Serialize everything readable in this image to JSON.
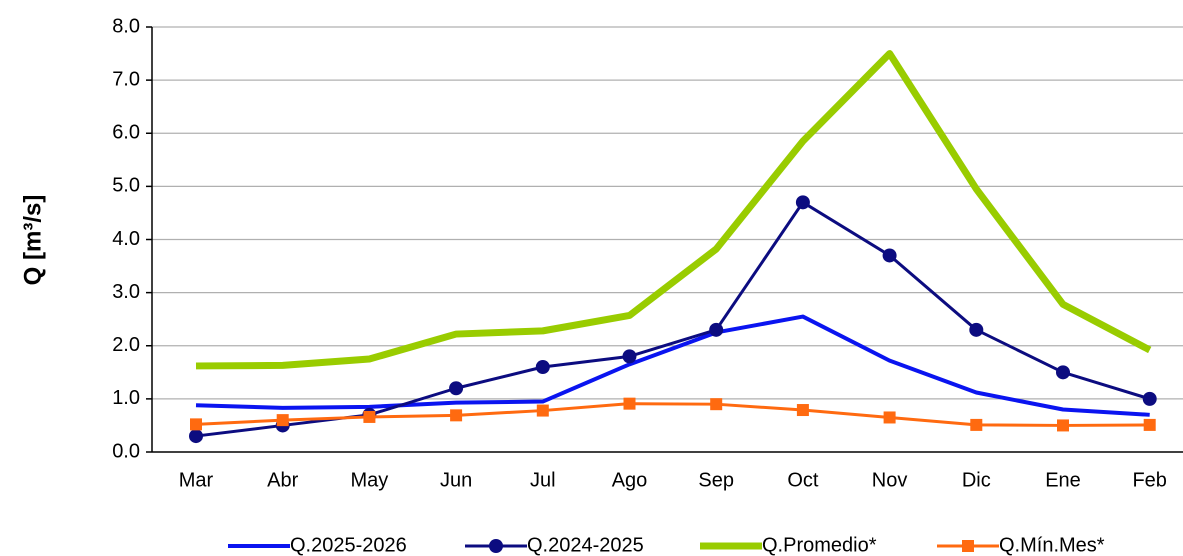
{
  "chart_data": {
    "type": "line",
    "y_label": "Q [m³/s]",
    "categories": [
      "Mar",
      "Abr",
      "May",
      "Jun",
      "Jul",
      "Ago",
      "Sep",
      "Oct",
      "Nov",
      "Dic",
      "Ene",
      "Feb"
    ],
    "ylim": [
      0,
      8
    ],
    "yticks": [
      {
        "value": 0,
        "label": "0.0"
      },
      {
        "value": 1,
        "label": "1.0"
      },
      {
        "value": 2,
        "label": "2.0"
      },
      {
        "value": 3,
        "label": "3.0"
      },
      {
        "value": 4,
        "label": "4.0"
      },
      {
        "value": 5,
        "label": "5.0"
      },
      {
        "value": 6,
        "label": "6.0"
      },
      {
        "value": 7,
        "label": "7.0"
      },
      {
        "value": 8,
        "label": "8.0"
      }
    ],
    "grid": true,
    "legend": "bottom",
    "series": [
      {
        "name": "Q.2025-2026",
        "color": "#0a14f0",
        "marker": "none",
        "values": [
          0.88,
          0.83,
          0.85,
          0.93,
          0.95,
          1.65,
          2.25,
          2.55,
          1.72,
          1.12,
          0.8,
          0.7
        ]
      },
      {
        "name": "Q.2024-2025",
        "color": "#0c0c80",
        "marker": "circle",
        "values": [
          0.3,
          0.5,
          0.7,
          1.2,
          1.6,
          1.8,
          2.3,
          4.7,
          3.7,
          2.3,
          1.5,
          1.0
        ]
      },
      {
        "name": "Q.Promedio*",
        "color": "#99cc00",
        "marker": "none",
        "values": [
          1.62,
          1.63,
          1.75,
          2.22,
          2.28,
          2.57,
          3.82,
          5.85,
          7.5,
          4.95,
          2.78,
          1.92
        ]
      },
      {
        "name": "Q.Mín.Mes*",
        "color": "#ff6a10",
        "marker": "square",
        "values": [
          0.52,
          0.6,
          0.66,
          0.69,
          0.78,
          0.91,
          0.9,
          0.79,
          0.65,
          0.51,
          0.5,
          0.51
        ]
      }
    ]
  }
}
